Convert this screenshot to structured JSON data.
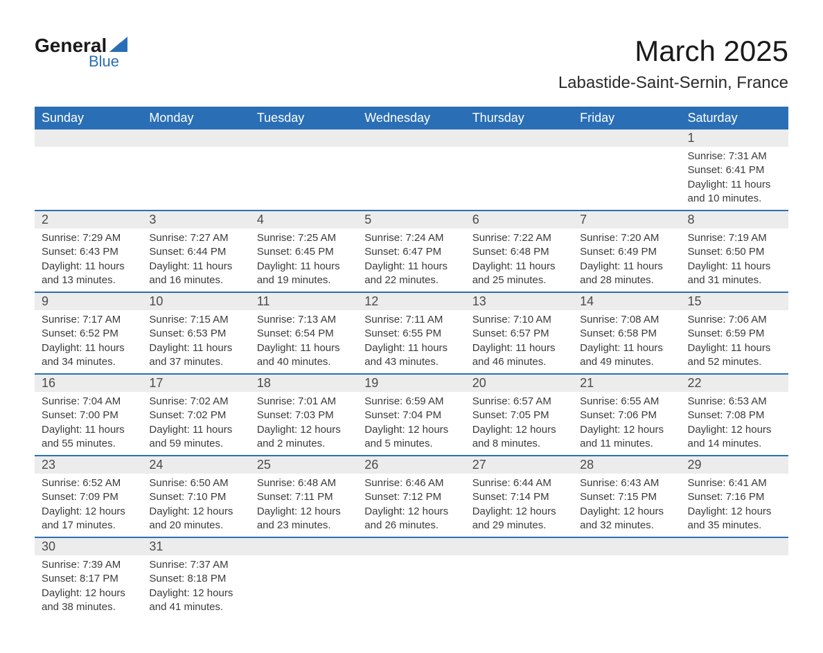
{
  "logo": {
    "text1": "General",
    "text2": "Blue",
    "icon_color": "#2a6fb5"
  },
  "title": "March 2025",
  "location": "Labastide-Saint-Sernin, France",
  "day_headers": [
    "Sunday",
    "Monday",
    "Tuesday",
    "Wednesday",
    "Thursday",
    "Friday",
    "Saturday"
  ],
  "colors": {
    "header_bg": "#2a6fb5",
    "header_text": "#ffffff",
    "daynum_bg": "#ececec",
    "border": "#2a6fb5",
    "text": "#3a3a3a"
  },
  "weeks": [
    [
      {
        "day": "",
        "sunrise": "",
        "sunset": "",
        "daylight1": "",
        "daylight2": ""
      },
      {
        "day": "",
        "sunrise": "",
        "sunset": "",
        "daylight1": "",
        "daylight2": ""
      },
      {
        "day": "",
        "sunrise": "",
        "sunset": "",
        "daylight1": "",
        "daylight2": ""
      },
      {
        "day": "",
        "sunrise": "",
        "sunset": "",
        "daylight1": "",
        "daylight2": ""
      },
      {
        "day": "",
        "sunrise": "",
        "sunset": "",
        "daylight1": "",
        "daylight2": ""
      },
      {
        "day": "",
        "sunrise": "",
        "sunset": "",
        "daylight1": "",
        "daylight2": ""
      },
      {
        "day": "1",
        "sunrise": "Sunrise: 7:31 AM",
        "sunset": "Sunset: 6:41 PM",
        "daylight1": "Daylight: 11 hours",
        "daylight2": "and 10 minutes."
      }
    ],
    [
      {
        "day": "2",
        "sunrise": "Sunrise: 7:29 AM",
        "sunset": "Sunset: 6:43 PM",
        "daylight1": "Daylight: 11 hours",
        "daylight2": "and 13 minutes."
      },
      {
        "day": "3",
        "sunrise": "Sunrise: 7:27 AM",
        "sunset": "Sunset: 6:44 PM",
        "daylight1": "Daylight: 11 hours",
        "daylight2": "and 16 minutes."
      },
      {
        "day": "4",
        "sunrise": "Sunrise: 7:25 AM",
        "sunset": "Sunset: 6:45 PM",
        "daylight1": "Daylight: 11 hours",
        "daylight2": "and 19 minutes."
      },
      {
        "day": "5",
        "sunrise": "Sunrise: 7:24 AM",
        "sunset": "Sunset: 6:47 PM",
        "daylight1": "Daylight: 11 hours",
        "daylight2": "and 22 minutes."
      },
      {
        "day": "6",
        "sunrise": "Sunrise: 7:22 AM",
        "sunset": "Sunset: 6:48 PM",
        "daylight1": "Daylight: 11 hours",
        "daylight2": "and 25 minutes."
      },
      {
        "day": "7",
        "sunrise": "Sunrise: 7:20 AM",
        "sunset": "Sunset: 6:49 PM",
        "daylight1": "Daylight: 11 hours",
        "daylight2": "and 28 minutes."
      },
      {
        "day": "8",
        "sunrise": "Sunrise: 7:19 AM",
        "sunset": "Sunset: 6:50 PM",
        "daylight1": "Daylight: 11 hours",
        "daylight2": "and 31 minutes."
      }
    ],
    [
      {
        "day": "9",
        "sunrise": "Sunrise: 7:17 AM",
        "sunset": "Sunset: 6:52 PM",
        "daylight1": "Daylight: 11 hours",
        "daylight2": "and 34 minutes."
      },
      {
        "day": "10",
        "sunrise": "Sunrise: 7:15 AM",
        "sunset": "Sunset: 6:53 PM",
        "daylight1": "Daylight: 11 hours",
        "daylight2": "and 37 minutes."
      },
      {
        "day": "11",
        "sunrise": "Sunrise: 7:13 AM",
        "sunset": "Sunset: 6:54 PM",
        "daylight1": "Daylight: 11 hours",
        "daylight2": "and 40 minutes."
      },
      {
        "day": "12",
        "sunrise": "Sunrise: 7:11 AM",
        "sunset": "Sunset: 6:55 PM",
        "daylight1": "Daylight: 11 hours",
        "daylight2": "and 43 minutes."
      },
      {
        "day": "13",
        "sunrise": "Sunrise: 7:10 AM",
        "sunset": "Sunset: 6:57 PM",
        "daylight1": "Daylight: 11 hours",
        "daylight2": "and 46 minutes."
      },
      {
        "day": "14",
        "sunrise": "Sunrise: 7:08 AM",
        "sunset": "Sunset: 6:58 PM",
        "daylight1": "Daylight: 11 hours",
        "daylight2": "and 49 minutes."
      },
      {
        "day": "15",
        "sunrise": "Sunrise: 7:06 AM",
        "sunset": "Sunset: 6:59 PM",
        "daylight1": "Daylight: 11 hours",
        "daylight2": "and 52 minutes."
      }
    ],
    [
      {
        "day": "16",
        "sunrise": "Sunrise: 7:04 AM",
        "sunset": "Sunset: 7:00 PM",
        "daylight1": "Daylight: 11 hours",
        "daylight2": "and 55 minutes."
      },
      {
        "day": "17",
        "sunrise": "Sunrise: 7:02 AM",
        "sunset": "Sunset: 7:02 PM",
        "daylight1": "Daylight: 11 hours",
        "daylight2": "and 59 minutes."
      },
      {
        "day": "18",
        "sunrise": "Sunrise: 7:01 AM",
        "sunset": "Sunset: 7:03 PM",
        "daylight1": "Daylight: 12 hours",
        "daylight2": "and 2 minutes."
      },
      {
        "day": "19",
        "sunrise": "Sunrise: 6:59 AM",
        "sunset": "Sunset: 7:04 PM",
        "daylight1": "Daylight: 12 hours",
        "daylight2": "and 5 minutes."
      },
      {
        "day": "20",
        "sunrise": "Sunrise: 6:57 AM",
        "sunset": "Sunset: 7:05 PM",
        "daylight1": "Daylight: 12 hours",
        "daylight2": "and 8 minutes."
      },
      {
        "day": "21",
        "sunrise": "Sunrise: 6:55 AM",
        "sunset": "Sunset: 7:06 PM",
        "daylight1": "Daylight: 12 hours",
        "daylight2": "and 11 minutes."
      },
      {
        "day": "22",
        "sunrise": "Sunrise: 6:53 AM",
        "sunset": "Sunset: 7:08 PM",
        "daylight1": "Daylight: 12 hours",
        "daylight2": "and 14 minutes."
      }
    ],
    [
      {
        "day": "23",
        "sunrise": "Sunrise: 6:52 AM",
        "sunset": "Sunset: 7:09 PM",
        "daylight1": "Daylight: 12 hours",
        "daylight2": "and 17 minutes."
      },
      {
        "day": "24",
        "sunrise": "Sunrise: 6:50 AM",
        "sunset": "Sunset: 7:10 PM",
        "daylight1": "Daylight: 12 hours",
        "daylight2": "and 20 minutes."
      },
      {
        "day": "25",
        "sunrise": "Sunrise: 6:48 AM",
        "sunset": "Sunset: 7:11 PM",
        "daylight1": "Daylight: 12 hours",
        "daylight2": "and 23 minutes."
      },
      {
        "day": "26",
        "sunrise": "Sunrise: 6:46 AM",
        "sunset": "Sunset: 7:12 PM",
        "daylight1": "Daylight: 12 hours",
        "daylight2": "and 26 minutes."
      },
      {
        "day": "27",
        "sunrise": "Sunrise: 6:44 AM",
        "sunset": "Sunset: 7:14 PM",
        "daylight1": "Daylight: 12 hours",
        "daylight2": "and 29 minutes."
      },
      {
        "day": "28",
        "sunrise": "Sunrise: 6:43 AM",
        "sunset": "Sunset: 7:15 PM",
        "daylight1": "Daylight: 12 hours",
        "daylight2": "and 32 minutes."
      },
      {
        "day": "29",
        "sunrise": "Sunrise: 6:41 AM",
        "sunset": "Sunset: 7:16 PM",
        "daylight1": "Daylight: 12 hours",
        "daylight2": "and 35 minutes."
      }
    ],
    [
      {
        "day": "30",
        "sunrise": "Sunrise: 7:39 AM",
        "sunset": "Sunset: 8:17 PM",
        "daylight1": "Daylight: 12 hours",
        "daylight2": "and 38 minutes."
      },
      {
        "day": "31",
        "sunrise": "Sunrise: 7:37 AM",
        "sunset": "Sunset: 8:18 PM",
        "daylight1": "Daylight: 12 hours",
        "daylight2": "and 41 minutes."
      },
      {
        "day": "",
        "sunrise": "",
        "sunset": "",
        "daylight1": "",
        "daylight2": ""
      },
      {
        "day": "",
        "sunrise": "",
        "sunset": "",
        "daylight1": "",
        "daylight2": ""
      },
      {
        "day": "",
        "sunrise": "",
        "sunset": "",
        "daylight1": "",
        "daylight2": ""
      },
      {
        "day": "",
        "sunrise": "",
        "sunset": "",
        "daylight1": "",
        "daylight2": ""
      },
      {
        "day": "",
        "sunrise": "",
        "sunset": "",
        "daylight1": "",
        "daylight2": ""
      }
    ]
  ]
}
